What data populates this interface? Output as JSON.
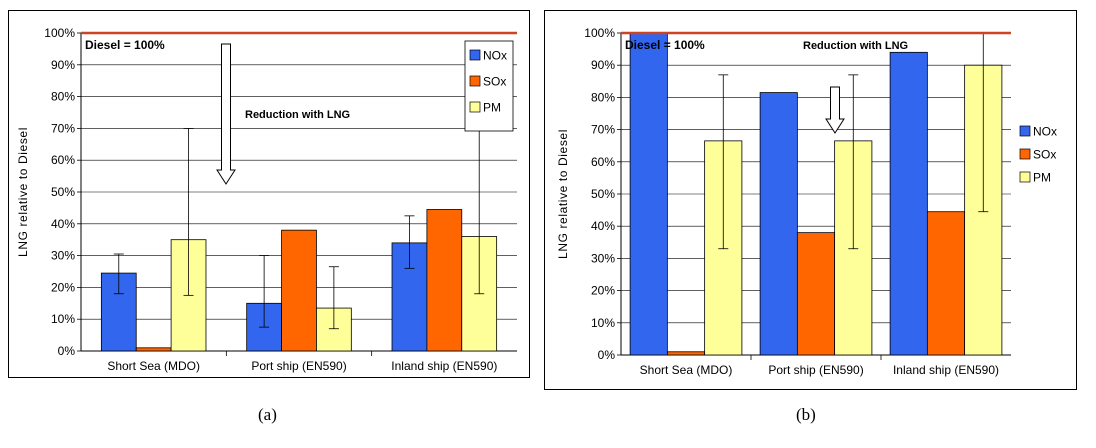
{
  "chart_data": [
    {
      "type": "bar",
      "caption": "(a)",
      "ylabel": "LNG relative to Diesel",
      "categories": [
        "Short Sea (MDO)",
        "Port ship (EN590)",
        "Inland ship (EN590)"
      ],
      "ylim": [
        0,
        100
      ],
      "yticks": [
        "0%",
        "10%",
        "20%",
        "30%",
        "40%",
        "50%",
        "60%",
        "70%",
        "80%",
        "90%",
        "100%"
      ],
      "grid": true,
      "legend_position": "top-right",
      "series": [
        {
          "name": "NOx",
          "color": "#3366ee",
          "values": [
            24.5,
            15,
            34
          ],
          "err_low": [
            18,
            7.5,
            26
          ],
          "err_high": [
            30.5,
            30,
            42.5
          ]
        },
        {
          "name": "SOx",
          "color": "#ff6600",
          "values": [
            1,
            38,
            44.5
          ],
          "err_low": [
            null,
            null,
            null
          ],
          "err_high": [
            null,
            null,
            null
          ]
        },
        {
          "name": "PM",
          "color": "#ffff99",
          "values": [
            35,
            13.5,
            36
          ],
          "err_low": [
            17.5,
            7,
            18
          ],
          "err_high": [
            70,
            26.5,
            72
          ]
        }
      ],
      "reference_line": {
        "value": 100,
        "label": "Diesel = 100%",
        "color": "#cc4422"
      },
      "annotation": "Reduction with LNG"
    },
    {
      "type": "bar",
      "caption": "(b)",
      "ylabel": "LNG relative to Diesel",
      "categories": [
        "Short Sea (MDO)",
        "Port ship (EN590)",
        "Inland ship (EN590)"
      ],
      "ylim": [
        0,
        100
      ],
      "yticks": [
        "0%",
        "10%",
        "20%",
        "30%",
        "40%",
        "50%",
        "60%",
        "70%",
        "80%",
        "90%",
        "100%"
      ],
      "grid": true,
      "legend_position": "right",
      "series": [
        {
          "name": "NOx",
          "color": "#3366ee",
          "values": [
            100,
            81.5,
            94
          ],
          "err_low": [
            null,
            null,
            null
          ],
          "err_high": [
            null,
            null,
            null
          ]
        },
        {
          "name": "SOx",
          "color": "#ff6600",
          "values": [
            1,
            38,
            44.5
          ],
          "err_low": [
            null,
            null,
            null
          ],
          "err_high": [
            null,
            null,
            null
          ]
        },
        {
          "name": "PM",
          "color": "#ffff99",
          "values": [
            66.5,
            66.5,
            90
          ],
          "err_low": [
            33,
            33,
            44.5
          ],
          "err_high": [
            87,
            87,
            100
          ]
        }
      ],
      "reference_line": {
        "value": 100,
        "label": "Diesel = 100%",
        "color": "#cc4422"
      },
      "annotation": "Reduction with LNG"
    }
  ]
}
